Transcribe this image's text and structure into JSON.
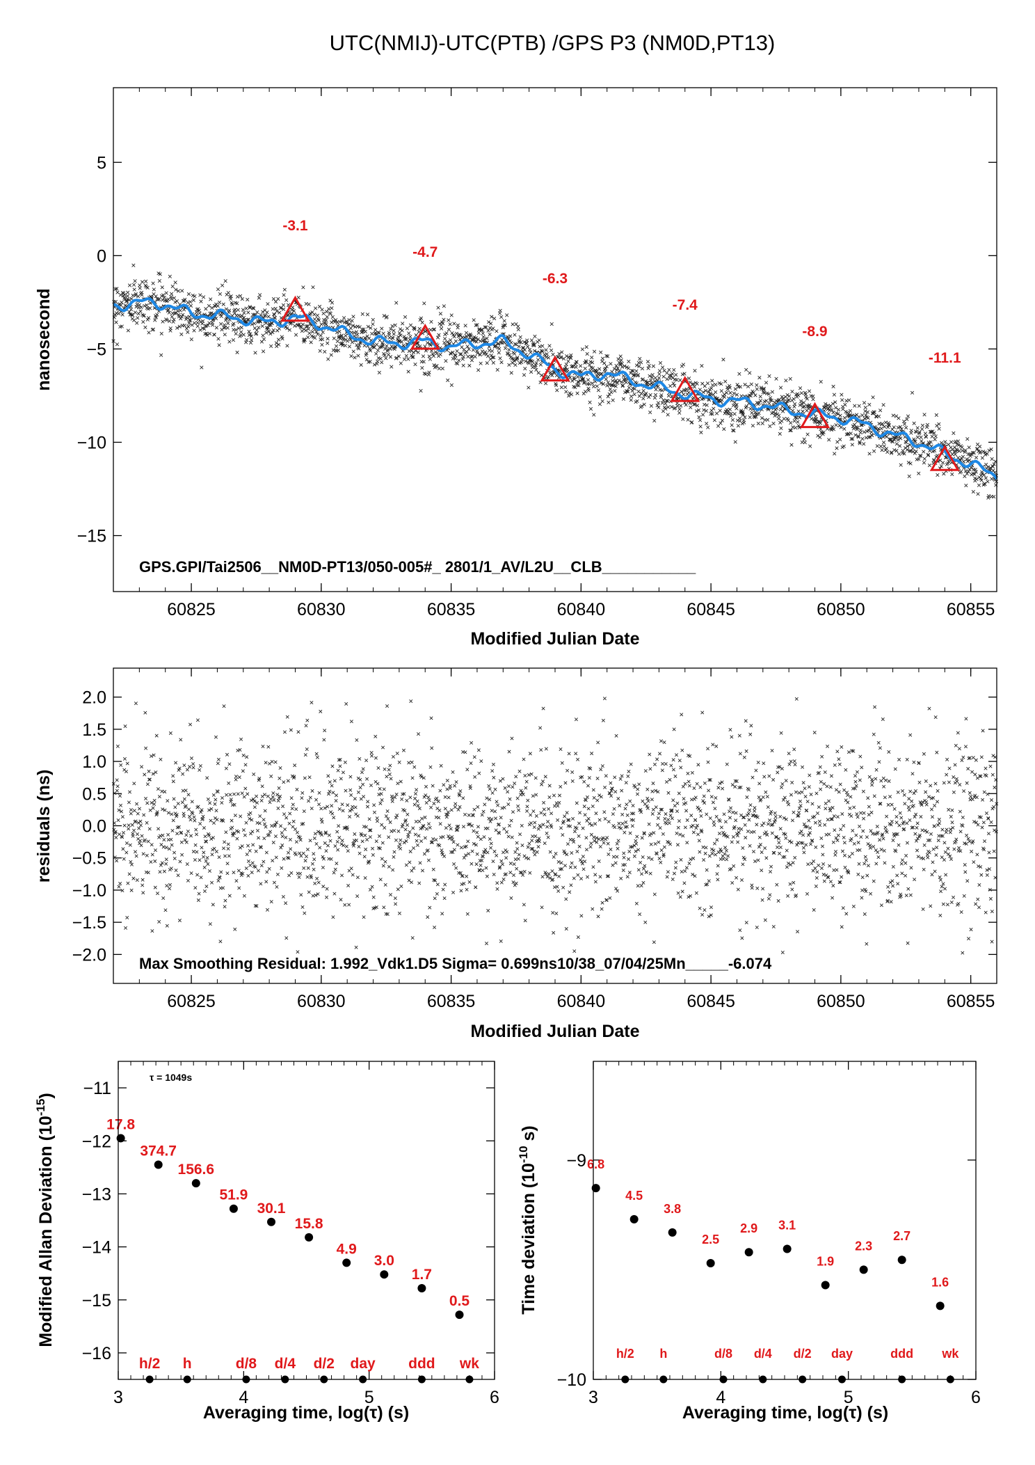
{
  "title": "UTC(NMIJ)-UTC(PTB)  /GPS  P3  (NM0D,PT13)",
  "colors": {
    "smooth_line": "#1e88e5",
    "markers": "#e0191b",
    "points": "#000000"
  },
  "chart_data": [
    {
      "name": "time-series",
      "type": "scatter",
      "xlabel": "Modified Julian Date",
      "ylabel": "nanosecond",
      "xlim": [
        60822,
        60856
      ],
      "ylim": [
        -18,
        9
      ],
      "xticks": [
        60825,
        60830,
        60835,
        60840,
        60845,
        60850,
        60855
      ],
      "yticks": [
        5,
        0,
        -5,
        -10,
        -15
      ],
      "ytick_labels": [
        "5",
        "0",
        "−5",
        "−10",
        "−15"
      ],
      "annotation": "GPS.GPI/Tai2506__NM0D-PT13/050-005#_  2801/1_AV/L2U__CLB___________",
      "smooth_line": {
        "x": [
          60822,
          60823,
          60824,
          60825,
          60826,
          60827,
          60828,
          60829,
          60830,
          60831,
          60832,
          60833,
          60834,
          60835,
          60836,
          60837,
          60838,
          60839,
          60840,
          60841,
          60842,
          60843,
          60844,
          60845,
          60846,
          60847,
          60848,
          60849,
          60850,
          60851,
          60852,
          60853,
          60854,
          60855,
          60856
        ],
        "y": [
          -2.7,
          -2.5,
          -2.6,
          -3.1,
          -3.2,
          -3.4,
          -3.6,
          -3.3,
          -3.7,
          -4.2,
          -4.6,
          -4.7,
          -4.6,
          -4.9,
          -4.7,
          -4.6,
          -5.3,
          -6.1,
          -6.5,
          -6.3,
          -6.7,
          -7.1,
          -7.4,
          -7.7,
          -7.8,
          -8.0,
          -8.3,
          -8.5,
          -8.7,
          -9.1,
          -9.6,
          -10.0,
          -10.6,
          -11.2,
          -11.8
        ]
      },
      "markers": {
        "x": [
          60829,
          60834,
          60839,
          60844,
          60849,
          60854
        ],
        "y": [
          -3.0,
          -4.5,
          -6.2,
          -7.3,
          -8.7,
          -11.0
        ],
        "labels": [
          "-3.1",
          "-4.7",
          "-6.3",
          "-7.4",
          "-8.9",
          "-11.1"
        ]
      }
    },
    {
      "name": "residuals",
      "type": "scatter",
      "xlabel": "Modified Julian Date",
      "ylabel": "residuals (ns)",
      "xlim": [
        60822,
        60856
      ],
      "ylim": [
        -2.45,
        2.45
      ],
      "xticks": [
        60825,
        60830,
        60835,
        60840,
        60845,
        60850,
        60855
      ],
      "yticks": [
        2.0,
        1.5,
        1.0,
        0.5,
        0.0,
        -0.5,
        -1.0,
        -1.5,
        -2.0
      ],
      "ytick_labels": [
        "2.0",
        "1.5",
        "1.0",
        "0.5",
        "0.0",
        "−0.5",
        "−1.0",
        "−1.5",
        "−2.0"
      ],
      "annotation": "Max Smoothing Residual: 1.992_Vdk1.D5  Sigma= 0.699ns10/38_07/04/25Mn_____-6.074",
      "sigma": 0.699
    },
    {
      "name": "modified-allan-deviation",
      "type": "scatter",
      "xlabel": "Averaging time, log(τ) (s)",
      "ylabel": "Modified Allan Deviation (10",
      "ylabel_exp": "-15",
      "ylabel_end": ")",
      "tau_note": "τ = 1049s",
      "xlim": [
        3,
        6
      ],
      "ylim": [
        -16.5,
        -10.5
      ],
      "xticks": [
        3,
        4,
        5,
        6
      ],
      "yticks": [
        -11,
        -12,
        -13,
        -14,
        -15,
        -16
      ],
      "ytick_labels": [
        "−11",
        "−12",
        "−13",
        "−14",
        "−15",
        "−16"
      ],
      "x": [
        3.02,
        3.32,
        3.62,
        3.92,
        4.22,
        4.52,
        4.82,
        5.12,
        5.42,
        5.72
      ],
      "y": [
        -11.95,
        -12.45,
        -12.8,
        -13.28,
        -13.53,
        -13.82,
        -14.3,
        -14.52,
        -14.78,
        -15.28
      ],
      "labels": [
        "17.8",
        "374.7",
        "156.6",
        "51.9",
        "30.1",
        "15.8",
        "4.9",
        "3.0",
        "1.7",
        "0.5"
      ],
      "bottom_markers": {
        "x": [
          3.25,
          3.55,
          4.02,
          4.33,
          4.64,
          4.95,
          5.42,
          5.8
        ],
        "labels": [
          "h/2",
          "h",
          "d/8",
          "d/4",
          "d/2",
          "day",
          "ddd",
          "wk"
        ]
      }
    },
    {
      "name": "time-deviation",
      "type": "scatter",
      "xlabel": "Averaging time, log(τ) (s)",
      "ylabel": "Time deviation (10",
      "ylabel_exp": "-10",
      "ylabel_end": " s)",
      "xlim": [
        3,
        6
      ],
      "ylim": [
        -10,
        -8.55
      ],
      "xticks": [
        3,
        4,
        5,
        6
      ],
      "yticks": [
        -9,
        -10
      ],
      "ytick_labels": [
        "−9",
        "−10"
      ],
      "x": [
        3.02,
        3.32,
        3.62,
        3.92,
        4.22,
        4.52,
        4.82,
        5.12,
        5.42,
        5.72
      ],
      "y": [
        -9.128,
        -9.27,
        -9.33,
        -9.47,
        -9.42,
        -9.405,
        -9.57,
        -9.5,
        -9.455,
        -9.665
      ],
      "labels": [
        "6.8",
        "4.5",
        "3.8",
        "2.5",
        "2.9",
        "3.1",
        "1.9",
        "2.3",
        "2.7",
        "1.6"
      ],
      "bottom_markers": {
        "x": [
          3.25,
          3.55,
          4.02,
          4.33,
          4.64,
          4.95,
          5.42,
          5.8
        ],
        "labels": [
          "h/2",
          "h",
          "d/8",
          "d/4",
          "d/2",
          "day",
          "ddd",
          "wk"
        ]
      }
    }
  ]
}
